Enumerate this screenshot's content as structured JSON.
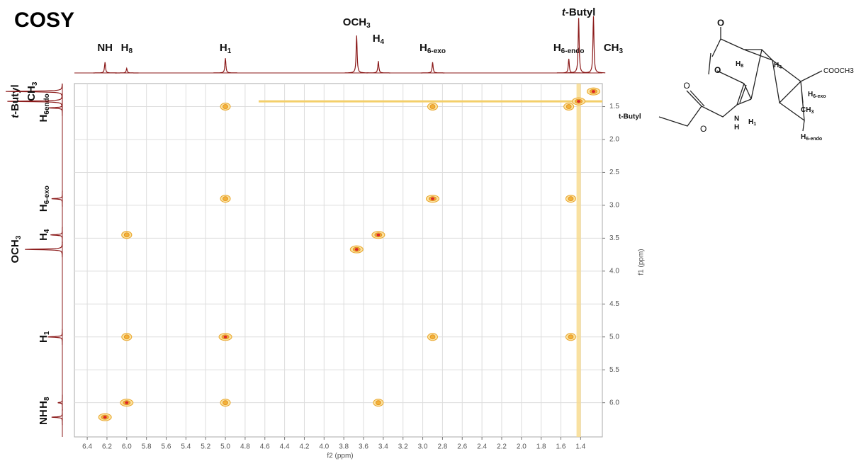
{
  "chart_data": {
    "type": "cosy",
    "title": "COSY",
    "x_label": "f2 (ppm)",
    "y_label": "f1 (ppm)",
    "xlim": [
      6.53,
      1.18
    ],
    "ylim": [
      1.15,
      6.52
    ],
    "xticks": [
      6.4,
      6.2,
      {
        "value": 6,
        "label": "6.0"
      },
      5.8,
      5.6,
      5.4,
      5.2,
      {
        "value": 5,
        "label": "5.0"
      },
      4.8,
      4.6,
      4.4,
      4.2,
      {
        "value": 4,
        "label": "4.0"
      },
      3.8,
      3.6,
      3.4,
      3.2,
      {
        "value": 3,
        "label": "3.0"
      },
      2.8,
      2.6,
      2.4,
      2.2,
      {
        "value": 2,
        "label": "2.0"
      },
      1.8,
      1.6,
      1.4
    ],
    "yticks": [
      1.5,
      {
        "value": 2,
        "label": "2.0"
      },
      2.5,
      {
        "value": 3,
        "label": "3.0"
      },
      3.5,
      {
        "value": 4,
        "label": "4.0"
      },
      4.5,
      {
        "value": 5,
        "label": "5.0"
      },
      5.5,
      {
        "value": 6,
        "label": "6.0"
      }
    ],
    "grid": true,
    "trace_color": "#8b1a1a",
    "signals": [
      {
        "label": "NH",
        "shift": 6.22,
        "intensity": 19
      },
      {
        "label": "H",
        "sub": "8",
        "shift": 6.0,
        "intensity": 8
      },
      {
        "label": "H",
        "sub": "1",
        "shift": 5.0,
        "intensity": 26
      },
      {
        "label": "OCH",
        "sub": "3",
        "shift": 3.67,
        "intensity": 66
      },
      {
        "label": "H",
        "sub": "4",
        "shift": 3.45,
        "intensity": 21
      },
      {
        "label": "H",
        "sub": "6-exo",
        "shift": 2.9,
        "intensity": 19
      },
      {
        "label": "H",
        "sub": "6-endo",
        "left_sub": "6endo",
        "shift": 1.52,
        "intensity": 25
      },
      {
        "label": "t-Butyl",
        "shift": 1.42,
        "intensity": 97
      },
      {
        "label": "CH",
        "sub": "3",
        "shift": 1.27,
        "intensity": 100
      }
    ],
    "cross_peaks": {
      "x": [
        6.22,
        6.0,
        5.0,
        6.0,
        3.45,
        6.0,
        5.0,
        2.9,
        1.5,
        3.67,
        6.0,
        3.45,
        5.0,
        2.9,
        1.5,
        5.0,
        2.9,
        1.52,
        1.42,
        1.27
      ],
      "y": [
        6.22,
        6.0,
        6.0,
        5.0,
        6.0,
        3.45,
        5.0,
        5.0,
        5.0,
        3.67,
        3.45,
        3.45,
        2.9,
        2.9,
        2.9,
        1.5,
        1.5,
        1.5,
        1.42,
        1.27
      ]
    }
  },
  "structure": {
    "labels": [
      "O",
      "H",
      "8",
      "H",
      "4",
      "O",
      "COOCH",
      "3",
      "O",
      "H",
      "6-exo",
      "CH",
      "3",
      "t-Butyl",
      "O",
      "N",
      "H",
      "H",
      "1",
      "H",
      "6-endo"
    ]
  }
}
